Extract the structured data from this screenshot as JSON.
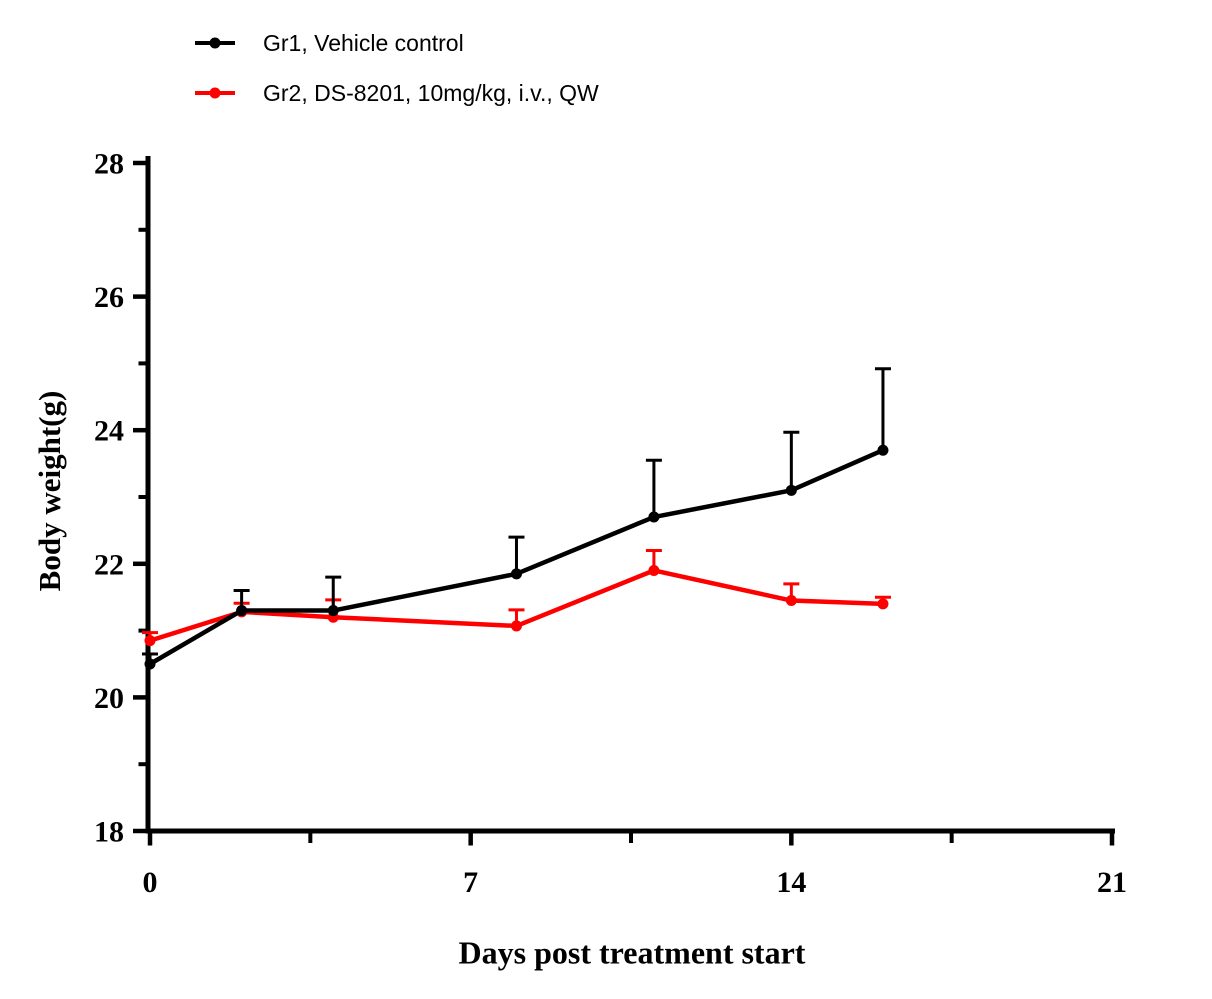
{
  "figure": {
    "background": "#ffffff"
  },
  "legend": {
    "items": [
      {
        "label": "Gr1, Vehicle control",
        "color": "#000000"
      },
      {
        "label": "Gr2, DS-8201, 10mg/kg, i.v., QW",
        "color": "#fe0000"
      }
    ]
  },
  "chart_data": {
    "type": "line",
    "title": "",
    "xlabel": "Days post treatment start",
    "ylabel": "Body weight(g)",
    "xlim": [
      0,
      21
    ],
    "ylim": [
      18,
      28
    ],
    "x_ticks": [
      0,
      7,
      14,
      21
    ],
    "x_minor_ticks": [
      3.5,
      10.5,
      17.5
    ],
    "y_ticks": [
      18,
      20,
      22,
      24,
      26,
      28
    ],
    "y_minor_ticks": [
      19,
      21,
      23,
      25,
      27
    ],
    "grid": "off",
    "legend_position": "top-left",
    "error_bars": "upper only",
    "axis_color": "#000000",
    "series": [
      {
        "name": "Gr1, Vehicle control",
        "color": "#000000",
        "x": [
          0,
          2,
          4,
          8,
          11,
          14,
          16
        ],
        "y": [
          20.5,
          21.3,
          21.3,
          21.85,
          22.7,
          23.1,
          23.7
        ],
        "err_upper": [
          0.15,
          0.3,
          0.5,
          0.55,
          0.85,
          0.87,
          1.22
        ]
      },
      {
        "name": "Gr2, DS-8201, 10mg/kg, i.v., QW",
        "color": "#fe0000",
        "x": [
          0,
          2,
          4,
          8,
          11,
          14,
          16
        ],
        "y": [
          20.85,
          21.28,
          21.2,
          21.07,
          21.9,
          21.45,
          21.4
        ],
        "err_upper": [
          0.12,
          0.13,
          0.26,
          0.24,
          0.3,
          0.25,
          0.1
        ]
      }
    ]
  }
}
